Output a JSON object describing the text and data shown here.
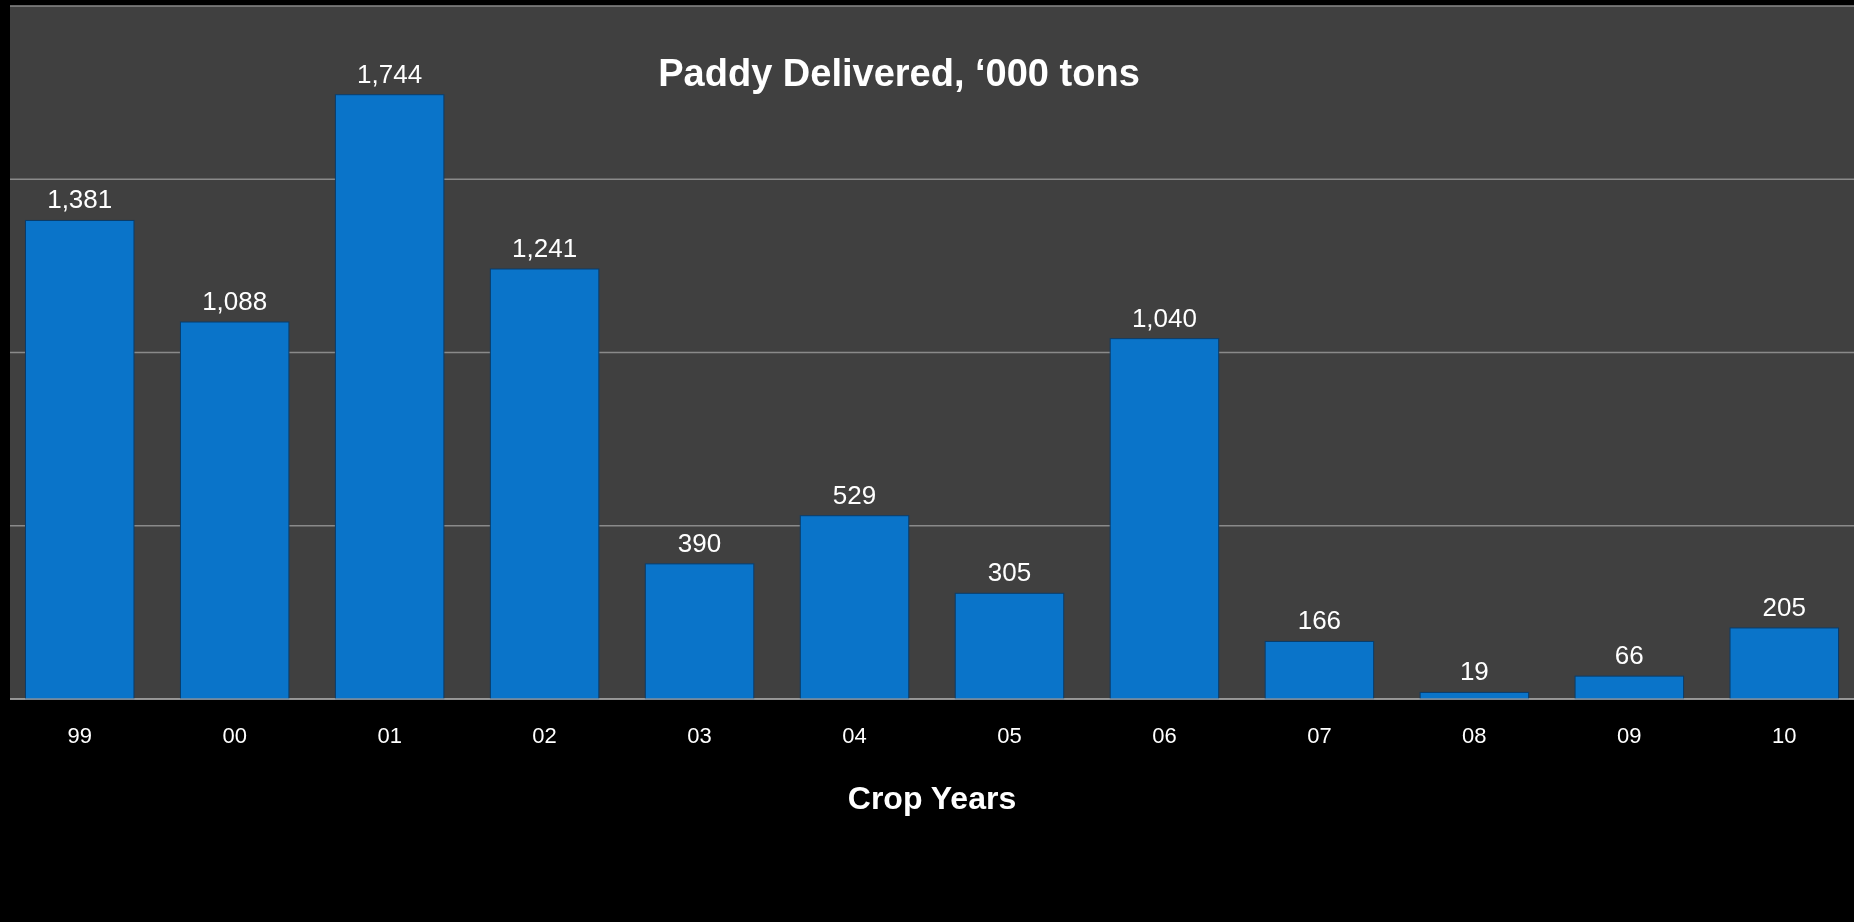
{
  "chart_data": {
    "type": "bar",
    "title": "Paddy Delivered, ‘000 tons",
    "xlabel": "Crop Years",
    "categories": [
      "99",
      "00",
      "01",
      "02",
      "03",
      "04",
      "05",
      "06",
      "07",
      "08",
      "09",
      "10"
    ],
    "values": [
      1381,
      1088,
      1744,
      1241,
      390,
      529,
      305,
      1040,
      166,
      19,
      66,
      205
    ],
    "color": "#0a74c9",
    "ylim": [
      0,
      2000
    ],
    "yticks": [
      {
        "value": 0,
        "label": null
      },
      {
        "value": 500,
        "label": null
      },
      {
        "value": 1000,
        "label": null
      },
      {
        "value": 1500,
        "label": null
      },
      {
        "value": 2000,
        "label": null
      }
    ],
    "value_labels": [
      "1,381",
      "1,088",
      "1,744",
      "1,241",
      "390",
      "529",
      "305",
      "1,040",
      "166",
      "19",
      "66",
      "205"
    ],
    "grid": "y",
    "tick_labels": "x"
  }
}
